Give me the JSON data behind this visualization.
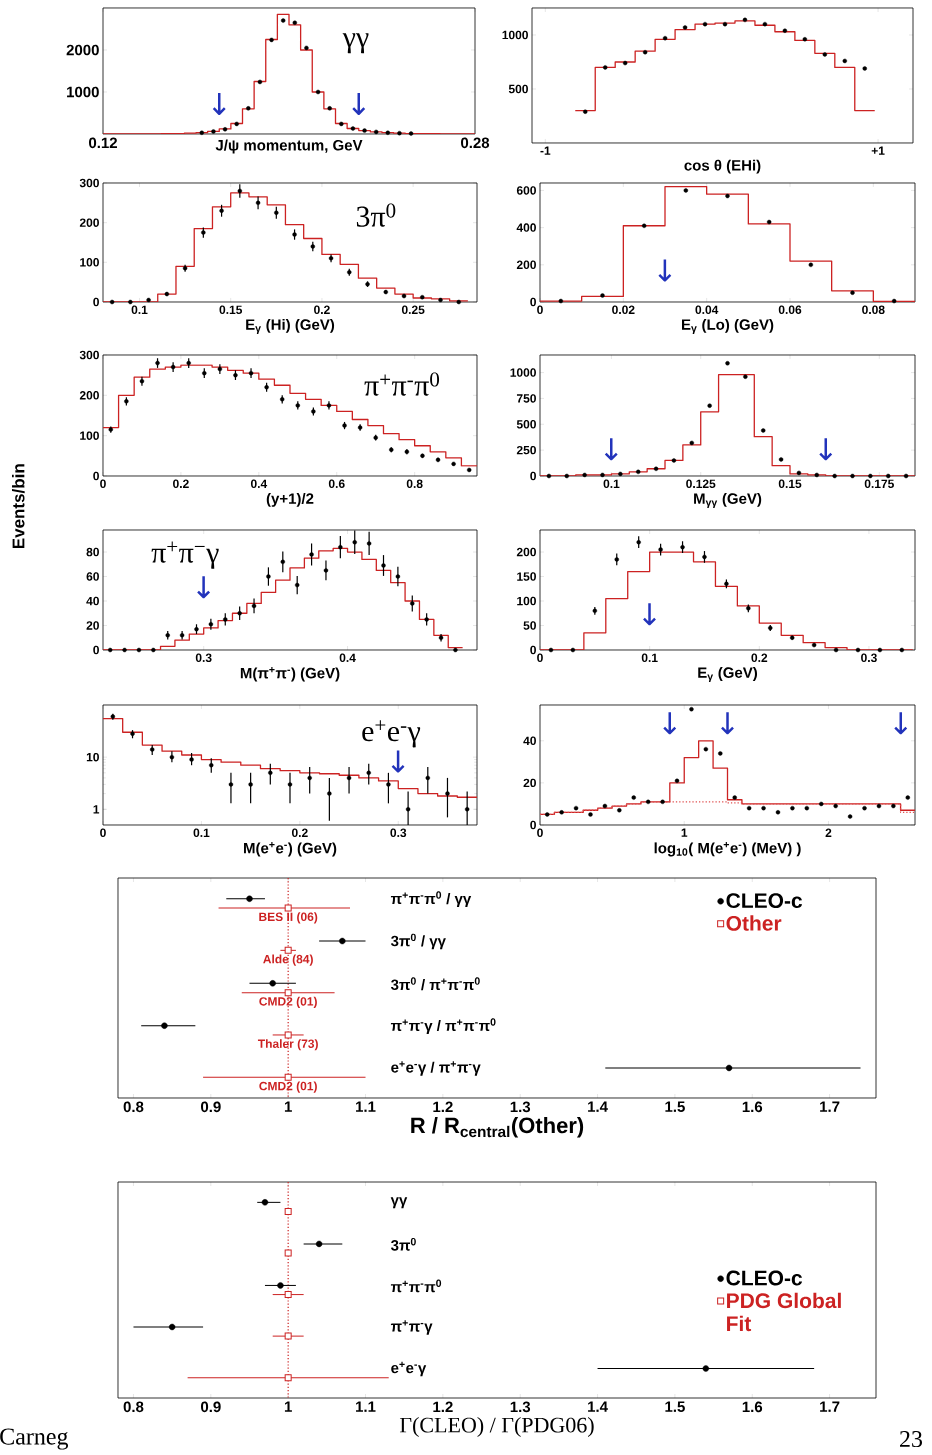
{
  "chart_data": [
    {
      "type": "histogram",
      "xlabel": "J/ψ momentum, GeV",
      "xlim": [
        0.12,
        0.28
      ],
      "ylim": [
        0,
        3000
      ],
      "xticks": [
        0.12,
        0.28
      ],
      "yticks": [
        1000,
        2000
      ],
      "bins": [
        0.12,
        0.125,
        0.13,
        0.135,
        0.14,
        0.145,
        0.15,
        0.155,
        0.16,
        0.165,
        0.17,
        0.175,
        0.18,
        0.185,
        0.19,
        0.195,
        0.2,
        0.205,
        0.21,
        0.215,
        0.22,
        0.225,
        0.23,
        0.235,
        0.24,
        0.245,
        0.25,
        0.255,
        0.26,
        0.265,
        0.27,
        0.275,
        0.28
      ],
      "series": [
        {
          "color": "#cc2222",
          "values": [
            0,
            0,
            0,
            0,
            0,
            5,
            10,
            20,
            30,
            60,
            120,
            250,
            600,
            1250,
            2250,
            2850,
            2600,
            2000,
            1000,
            600,
            250,
            130,
            80,
            50,
            30,
            20,
            10,
            8,
            5,
            3,
            0,
            0
          ]
        },
        {
          "type": "scatter",
          "marker": "circle",
          "color": "#000000",
          "x": [
            0.1625,
            0.1675,
            0.1725,
            0.1775,
            0.1825,
            0.1875,
            0.1925,
            0.1975,
            0.2025,
            0.2075,
            0.2125,
            0.2175,
            0.2225,
            0.2275,
            0.2325,
            0.2375,
            0.2425,
            0.2475,
            0.2525
          ],
          "values": [
            30,
            60,
            110,
            240,
            610,
            1240,
            2240,
            2700,
            2650,
            2050,
            1000,
            610,
            240,
            130,
            80,
            50,
            30,
            20,
            10
          ]
        }
      ],
      "annotations": [
        "γγ",
        "↓",
        "↓"
      ]
    },
    {
      "type": "histogram",
      "xlabel": "cos θ (EHi)",
      "xlim": [
        -1.08,
        1.21
      ],
      "ylim": [
        0,
        1250
      ],
      "xticks": [
        {
          "value": -1,
          "label": "-1"
        },
        {
          "value": 1,
          "label": "+1"
        }
      ],
      "yticks": [
        500,
        1000
      ],
      "bins": [
        -0.82,
        -0.7,
        -0.58,
        -0.46,
        -0.34,
        -0.22,
        -0.1,
        0.02,
        0.14,
        0.26,
        0.38,
        0.5,
        0.62,
        0.74,
        0.86,
        0.98
      ],
      "series": [
        {
          "color": "#cc2222",
          "values": [
            300,
            700,
            750,
            850,
            960,
            1050,
            1100,
            1110,
            1130,
            1090,
            1030,
            950,
            830,
            700,
            300
          ]
        },
        {
          "type": "scatter",
          "marker": "circle",
          "color": "#000000",
          "x": [
            -0.76,
            -0.64,
            -0.52,
            -0.4,
            -0.28,
            -0.16,
            -0.04,
            0.08,
            0.2,
            0.32,
            0.44,
            0.56,
            0.68,
            0.8,
            0.92
          ],
          "values": [
            290,
            700,
            740,
            840,
            970,
            1070,
            1100,
            1100,
            1140,
            1100,
            1040,
            960,
            820,
            760,
            690
          ]
        }
      ]
    },
    {
      "type": "histogram",
      "xlabel": "E$_{γ}$ (Hi) (GeV)",
      "xlim": [
        0.08,
        0.285
      ],
      "ylim": [
        0,
        300
      ],
      "xticks": [
        0.1,
        0.15,
        0.2,
        0.25
      ],
      "yticks": [
        0,
        100,
        200,
        300
      ],
      "bins": [
        0.08,
        0.09,
        0.1,
        0.11,
        0.12,
        0.13,
        0.14,
        0.15,
        0.16,
        0.17,
        0.18,
        0.19,
        0.2,
        0.21,
        0.22,
        0.23,
        0.24,
        0.25,
        0.26,
        0.27,
        0.28
      ],
      "series": [
        {
          "color": "#cc2222",
          "values": [
            0,
            0,
            0,
            20,
            90,
            185,
            240,
            275,
            265,
            245,
            195,
            160,
            120,
            95,
            60,
            35,
            20,
            10,
            8,
            3
          ]
        },
        {
          "type": "scatter",
          "marker": "circle",
          "color": "#000000",
          "x": [
            0.085,
            0.095,
            0.105,
            0.115,
            0.125,
            0.135,
            0.145,
            0.155,
            0.165,
            0.175,
            0.185,
            0.195,
            0.205,
            0.215,
            0.225,
            0.235,
            0.245,
            0.255,
            0.265,
            0.275
          ],
          "values": [
            0,
            0,
            5,
            20,
            85,
            175,
            230,
            280,
            250,
            225,
            170,
            140,
            110,
            75,
            45,
            25,
            15,
            12,
            5,
            0
          ],
          "errors": [
            null,
            null,
            null,
            5,
            9,
            13,
            15,
            17,
            16,
            15,
            13,
            12,
            10,
            9,
            7,
            5,
            4,
            null,
            null,
            null
          ]
        }
      ],
      "annotations": [
        "3π$^{0}$"
      ]
    },
    {
      "type": "histogram",
      "xlabel": "E$_{γ}$ (Lo) (GeV)",
      "xlim": [
        0,
        0.09
      ],
      "ylim": [
        0,
        640
      ],
      "xticks": [
        0,
        0.02,
        0.04,
        0.06,
        0.08
      ],
      "yticks": [
        0,
        200,
        400,
        600
      ],
      "bins": [
        0,
        0.01,
        0.02,
        0.03,
        0.04,
        0.05,
        0.06,
        0.07,
        0.08,
        0.09
      ],
      "series": [
        {
          "color": "#cc2222",
          "values": [
            5,
            30,
            410,
            620,
            580,
            420,
            220,
            60,
            3
          ]
        },
        {
          "type": "scatter",
          "marker": "circle",
          "color": "#000000",
          "x": [
            0.005,
            0.015,
            0.025,
            0.035,
            0.045,
            0.055,
            0.065,
            0.075,
            0.085
          ],
          "values": [
            5,
            35,
            410,
            600,
            570,
            430,
            200,
            50,
            5
          ]
        }
      ],
      "annotations": [
        "↓"
      ]
    },
    {
      "type": "histogram",
      "xlabel": "(y+1)/2",
      "ylabel": "Events/bin",
      "xlim": [
        0,
        0.96
      ],
      "ylim": [
        0,
        300
      ],
      "xticks": [
        0,
        0.2,
        0.4,
        0.6,
        0.8
      ],
      "yticks": [
        0,
        100,
        200,
        300
      ],
      "bins": [
        0,
        0.04,
        0.08,
        0.12,
        0.16,
        0.2,
        0.24,
        0.28,
        0.32,
        0.36,
        0.4,
        0.44,
        0.48,
        0.52,
        0.56,
        0.6,
        0.64,
        0.68,
        0.72,
        0.76,
        0.8,
        0.84,
        0.88,
        0.92,
        0.96
      ],
      "series": [
        {
          "color": "#cc2222",
          "values": [
            120,
            200,
            245,
            265,
            270,
            275,
            275,
            270,
            262,
            255,
            240,
            225,
            205,
            190,
            175,
            160,
            140,
            125,
            105,
            90,
            75,
            60,
            45,
            25
          ]
        },
        {
          "type": "scatter",
          "marker": "circle",
          "color": "#000000",
          "x": [
            0.02,
            0.06,
            0.1,
            0.14,
            0.18,
            0.22,
            0.26,
            0.3,
            0.34,
            0.38,
            0.42,
            0.46,
            0.5,
            0.54,
            0.58,
            0.62,
            0.66,
            0.7,
            0.74,
            0.78,
            0.82,
            0.86,
            0.9,
            0.94
          ],
          "values": [
            115,
            185,
            235,
            280,
            270,
            280,
            255,
            265,
            250,
            255,
            220,
            190,
            175,
            160,
            175,
            125,
            120,
            95,
            65,
            60,
            50,
            40,
            30,
            15
          ],
          "errors": [
            8,
            10,
            11,
            12,
            12,
            12,
            12,
            12,
            12,
            12,
            11,
            10,
            10,
            10,
            10,
            9,
            8,
            7,
            6,
            6,
            5,
            5,
            null,
            null
          ]
        }
      ],
      "annotations": [
        "π$^{+}$π$^{-}$π$^{0}$"
      ]
    },
    {
      "type": "histogram",
      "xlabel": "M$_{γγ}$ (GeV)",
      "xlim": [
        0.08,
        0.185
      ],
      "ylim": [
        0,
        1170
      ],
      "xticks": [
        0.1,
        0.125,
        0.15,
        0.175
      ],
      "yticks": [
        0,
        250,
        500,
        750,
        1000
      ],
      "bins": [
        0.08,
        0.085,
        0.09,
        0.095,
        0.1,
        0.105,
        0.11,
        0.115,
        0.12,
        0.125,
        0.13,
        0.135,
        0.14,
        0.145,
        0.15,
        0.155,
        0.16,
        0.165,
        0.17,
        0.175,
        0.18,
        0.185
      ],
      "series": [
        {
          "color": "#cc2222",
          "values": [
            0,
            0,
            10,
            10,
            20,
            40,
            70,
            150,
            300,
            620,
            980,
            980,
            380,
            100,
            20,
            10,
            0,
            0,
            0,
            0,
            0
          ]
        },
        {
          "type": "scatter",
          "marker": "circle",
          "color": "#000000",
          "x": [
            0.0825,
            0.0875,
            0.0925,
            0.0975,
            0.1025,
            0.1075,
            0.1125,
            0.1175,
            0.1225,
            0.1275,
            0.1325,
            0.1375,
            0.1425,
            0.1475,
            0.1525,
            0.1575,
            0.1625,
            0.1675,
            0.1725,
            0.1775,
            0.1825
          ],
          "values": [
            0,
            0,
            10,
            10,
            20,
            40,
            70,
            150,
            320,
            680,
            1090,
            960,
            440,
            160,
            30,
            10,
            0,
            0,
            0,
            0,
            0
          ]
        }
      ],
      "annotations": [
        "↓",
        "↓"
      ]
    },
    {
      "type": "histogram",
      "xlabel": "M(π$^{+}$π$^{-}$) (GeV)",
      "xlim": [
        0.23,
        0.49
      ],
      "ylim": [
        0,
        98
      ],
      "xticks": [
        0.3,
        0.4
      ],
      "yticks": [
        0,
        20,
        40,
        60,
        80
      ],
      "bins": [
        0.23,
        0.24,
        0.25,
        0.26,
        0.27,
        0.28,
        0.29,
        0.3,
        0.31,
        0.32,
        0.33,
        0.34,
        0.35,
        0.36,
        0.37,
        0.38,
        0.39,
        0.4,
        0.41,
        0.42,
        0.43,
        0.44,
        0.45,
        0.46,
        0.47,
        0.48
      ],
      "series": [
        {
          "color": "#cc2222",
          "values": [
            0,
            0,
            0,
            0,
            3,
            8,
            13,
            18,
            24,
            30,
            38,
            47,
            57,
            67,
            75,
            81,
            83,
            80,
            74,
            65,
            55,
            40,
            25,
            12,
            2
          ]
        },
        {
          "type": "scatter",
          "marker": "circle",
          "color": "#000000",
          "x": [
            0.235,
            0.245,
            0.255,
            0.265,
            0.275,
            0.285,
            0.295,
            0.305,
            0.315,
            0.325,
            0.335,
            0.345,
            0.355,
            0.365,
            0.375,
            0.385,
            0.395,
            0.405,
            0.415,
            0.425,
            0.435,
            0.445,
            0.455,
            0.465,
            0.475
          ],
          "values": [
            0,
            0,
            0,
            0,
            12,
            12,
            17,
            21,
            25,
            30,
            36,
            60,
            72,
            53,
            78,
            65,
            84,
            88,
            87,
            69,
            60,
            38,
            25,
            10,
            0
          ],
          "errors": [
            null,
            null,
            null,
            null,
            3.5,
            3.5,
            4,
            4.5,
            5,
            5.5,
            6,
            7.5,
            8.5,
            7.5,
            9,
            8,
            9,
            9.5,
            9.5,
            8.5,
            8,
            6.5,
            5,
            3,
            null
          ]
        }
      ],
      "annotations": [
        "π$^{+}$π$^{−}$γ",
        "↓"
      ]
    },
    {
      "type": "histogram",
      "xlabel": "E$_{γ}$ (GeV)",
      "xlim": [
        0,
        0.342
      ],
      "ylim": [
        0,
        245
      ],
      "xticks": [
        0,
        0.1,
        0.2,
        0.3
      ],
      "yticks": [
        0,
        50,
        100,
        150,
        200
      ],
      "bins": [
        0,
        0.02,
        0.04,
        0.06,
        0.08,
        0.1,
        0.12,
        0.14,
        0.16,
        0.18,
        0.2,
        0.22,
        0.24,
        0.26,
        0.28,
        0.3,
        0.32,
        0.34
      ],
      "series": [
        {
          "color": "#cc2222",
          "values": [
            0,
            0,
            35,
            105,
            160,
            200,
            200,
            180,
            130,
            90,
            55,
            30,
            15,
            5,
            0,
            0,
            0
          ]
        },
        {
          "type": "scatter",
          "marker": "circle",
          "color": "#000000",
          "x": [
            0.01,
            0.03,
            0.05,
            0.07,
            0.09,
            0.11,
            0.13,
            0.15,
            0.17,
            0.19,
            0.21,
            0.23,
            0.25,
            0.27,
            0.29,
            0.31,
            0.33
          ],
          "values": [
            0,
            0,
            80,
            185,
            220,
            205,
            210,
            190,
            135,
            85,
            45,
            25,
            10,
            0,
            0,
            0,
            0
          ],
          "errors": [
            null,
            null,
            8,
            12,
            12,
            12,
            12,
            12,
            9,
            8,
            6,
            4,
            null,
            null,
            null,
            null,
            null
          ]
        }
      ],
      "annotations": [
        "↓"
      ]
    },
    {
      "type": "histogram",
      "xlabel": "M(e$^{+}$e$^{-}$) (GeV)",
      "log": true,
      "xlim": [
        0,
        0.38
      ],
      "ylim": [
        0.5,
        100
      ],
      "xticks": [
        0,
        0.1,
        0.2,
        0.3
      ],
      "yticks": [
        1,
        10
      ],
      "bins": [
        0,
        0.02,
        0.04,
        0.06,
        0.08,
        0.1,
        0.12,
        0.14,
        0.16,
        0.18,
        0.2,
        0.22,
        0.24,
        0.26,
        0.28,
        0.3,
        0.32,
        0.34,
        0.36,
        0.38
      ],
      "series": [
        {
          "color": "#cc2222",
          "values": [
            55,
            30,
            17,
            13,
            11,
            9,
            8,
            7,
            6,
            5.5,
            5,
            4.8,
            4.5,
            4,
            3.5,
            2.5,
            2,
            1.8,
            1.7
          ]
        },
        {
          "type": "scatter",
          "marker": "circle",
          "color": "#000000",
          "x": [
            0.01,
            0.03,
            0.05,
            0.07,
            0.09,
            0.11,
            0.13,
            0.15,
            0.17,
            0.19,
            0.21,
            0.23,
            0.25,
            0.27,
            0.29,
            0.31,
            0.33,
            0.35,
            0.37
          ],
          "values": [
            60,
            28,
            14,
            10,
            9,
            7,
            3,
            3,
            5,
            3,
            4,
            2,
            4,
            5,
            3,
            1,
            4,
            2,
            1
          ],
          "errors": [
            [
              52,
              68
            ],
            [
              23,
              33
            ],
            [
              11,
              17
            ],
            [
              8,
              13
            ],
            [
              7,
              12
            ],
            [
              5,
              9.5
            ],
            [
              1.3,
              5
            ],
            [
              1.3,
              5
            ],
            [
              3,
              7.5
            ],
            [
              1.3,
              5
            ],
            [
              2,
              6.5
            ],
            [
              0.6,
              4
            ],
            [
              2,
              6.5
            ],
            [
              3,
              7.5
            ],
            [
              1.3,
              5
            ],
            [
              0.5,
              2.2
            ],
            [
              2,
              6.5
            ],
            [
              0.7,
              4
            ],
            [
              0.5,
              2.2
            ]
          ]
        }
      ],
      "annotations": [
        "e$^{+}$e$^{-}$γ",
        "↓"
      ]
    },
    {
      "type": "histogram",
      "xlabel": "log$_{10}$( M(e$^{+}$e$^{-}$) (MeV) )",
      "xlim": [
        0,
        2.6
      ],
      "ylim": [
        0,
        57
      ],
      "xticks": [
        0,
        1,
        2
      ],
      "yticks": [
        0,
        20,
        40
      ],
      "bins": [
        0,
        0.1,
        0.2,
        0.3,
        0.4,
        0.5,
        0.6,
        0.7,
        0.8,
        0.9,
        1.0,
        1.1,
        1.2,
        1.3,
        1.4,
        1.5,
        1.6,
        1.7,
        1.8,
        1.9,
        2.0,
        2.1,
        2.2,
        2.3,
        2.4,
        2.5,
        2.6
      ],
      "series": [
        {
          "color": "#cc2222",
          "values": [
            5,
            6,
            6,
            7,
            8,
            9,
            10,
            11,
            11,
            20,
            32,
            40,
            27,
            12,
            10,
            10,
            10,
            10,
            10,
            10,
            10,
            10,
            10,
            10,
            10,
            7
          ]
        },
        {
          "color": "#e05050",
          "line_style": "dotted",
          "values": [
            5,
            6,
            6,
            7,
            8,
            9,
            10,
            11,
            11,
            11,
            11,
            11,
            11,
            10.5,
            10,
            10,
            10,
            10,
            10,
            10,
            10,
            10,
            10,
            10,
            10,
            6
          ]
        },
        {
          "type": "scatter",
          "marker": "circle",
          "color": "#000000",
          "x": [
            0.05,
            0.15,
            0.25,
            0.35,
            0.45,
            0.55,
            0.65,
            0.75,
            0.85,
            0.95,
            1.05,
            1.15,
            1.25,
            1.35,
            1.45,
            1.55,
            1.65,
            1.75,
            1.85,
            1.95,
            2.05,
            2.15,
            2.25,
            2.35,
            2.45,
            2.55
          ],
          "values": [
            5,
            6,
            8,
            5,
            9,
            7,
            13,
            11,
            11,
            21,
            55,
            36,
            34,
            13,
            8,
            8,
            6,
            8,
            8,
            10,
            9,
            4,
            8,
            9,
            9,
            13
          ]
        }
      ],
      "annotations": [
        "↓",
        "↓",
        "↓"
      ]
    },
    {
      "type": "scatter",
      "orientation": "horizontal",
      "xlabel": "R / R$_{central}$(Other)",
      "xlim": [
        0.78,
        1.76
      ],
      "xticks": [
        0.8,
        0.9,
        1,
        1.1,
        1.2,
        1.3,
        1.4,
        1.5,
        1.6,
        1.7
      ],
      "legend": "top right",
      "categories": [
        "π$^{+}$π$^{-}$π$^{0}$ / γγ",
        "3π$^{0}$ / γγ",
        "3π$^{0}$ / π$^{+}$π$^{-}$π$^{0}$",
        "π$^{+}$π$^{-}$γ / π$^{+}$π$^{-}$π$^{0}$",
        "e$^{+}$e$^{-}$γ / π$^{+}$π$^{-}$γ"
      ],
      "series": [
        {
          "name": "CLEO-c",
          "marker": "circle",
          "color": "#000000",
          "values": [
            0.95,
            1.07,
            0.98,
            0.84,
            1.57
          ],
          "errors": [
            [
              0.92,
              0.97
            ],
            [
              1.04,
              1.1
            ],
            [
              0.95,
              1.01
            ],
            [
              0.81,
              0.88
            ],
            [
              1.41,
              1.74
            ]
          ]
        },
        {
          "name": "Other",
          "marker": "square",
          "color": "#cc2222",
          "values": [
            1,
            1,
            1,
            1,
            1
          ],
          "errors": [
            [
              0.91,
              1.08
            ],
            [
              0.99,
              1.01
            ],
            [
              0.94,
              1.06
            ],
            [
              0.98,
              1.02
            ],
            [
              0.89,
              1.1
            ]
          ]
        }
      ],
      "ref_lines": [
        {
          "axis": "x",
          "value": 1,
          "color": "#cc2222",
          "line_style": "dotted"
        }
      ],
      "annotations": [
        "BES II (06)",
        "Alde (84)",
        "CMD2 (01)",
        "Thaler (73)",
        "CMD2 (01)"
      ]
    },
    {
      "type": "scatter",
      "orientation": "horizontal",
      "xlabel": "Γ(CLEO) / Γ(PDG06)",
      "xlim": [
        0.78,
        1.76
      ],
      "xticks": [
        0.8,
        0.9,
        1,
        1.1,
        1.2,
        1.3,
        1.4,
        1.5,
        1.6,
        1.7
      ],
      "legend": "right",
      "categories": [
        "γγ",
        "3π$^{0}$",
        "π$^{+}$π$^{-}$π$^{0}$",
        "π$^{+}$π$^{-}$γ",
        "e$^{+}$e$^{-}$γ"
      ],
      "series": [
        {
          "name": "CLEO-c",
          "marker": "circle",
          "color": "#000000",
          "values": [
            0.97,
            1.04,
            0.99,
            0.85,
            1.54
          ],
          "errors": [
            [
              0.96,
              0.99
            ],
            [
              1.02,
              1.07
            ],
            [
              0.97,
              1.01
            ],
            [
              0.8,
              0.89
            ],
            [
              1.4,
              1.68
            ]
          ]
        },
        {
          "name": "PDG Global Fit",
          "marker": "square",
          "color": "#cc2222",
          "values": [
            1,
            1,
            1,
            1,
            1
          ],
          "errors": [
            null,
            null,
            [
              0.98,
              1.02
            ],
            [
              0.98,
              1.02
            ],
            [
              0.87,
              1.13
            ]
          ]
        }
      ],
      "ref_lines": [
        {
          "axis": "x",
          "value": 1,
          "color": "#cc2222",
          "line_style": "dotted"
        }
      ],
      "annotations": [
        "Carneg",
        "23"
      ]
    }
  ]
}
